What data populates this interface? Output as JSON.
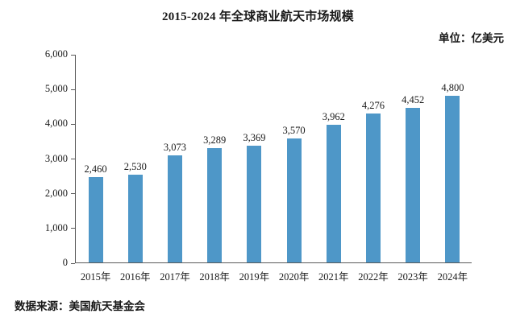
{
  "page": {
    "title": "2015-2024 年全球商业航天市场规模",
    "unit_label": "单位：亿美元",
    "source_note": "数据来源：美国航天基金会"
  },
  "chart_data": {
    "type": "bar",
    "title": "2015-2024 年全球商业航天市场规模",
    "unit": "亿美元",
    "categories": [
      "2015年",
      "2016年",
      "2017年",
      "2018年",
      "2019年",
      "2020年",
      "2021年",
      "2022年",
      "2023年",
      "2024年"
    ],
    "values": [
      2460,
      2530,
      3073,
      3289,
      3369,
      3570,
      3962,
      4276,
      4452,
      4800
    ],
    "value_labels": [
      "2,460",
      "2,530",
      "3,073",
      "3,289",
      "3,369",
      "3,570",
      "3,962",
      "4,276",
      "4,452",
      "4,800"
    ],
    "ylim": [
      0,
      6000
    ],
    "ytick_step": 1000,
    "ytick_labels": [
      "0",
      "1,000",
      "2,000",
      "3,000",
      "4,000",
      "5,000",
      "6,000"
    ],
    "bar_color": "#4e97c8",
    "axis_color": "#595959",
    "grid": false,
    "legend": "none",
    "source": "数据来源：美国航天基金会"
  }
}
